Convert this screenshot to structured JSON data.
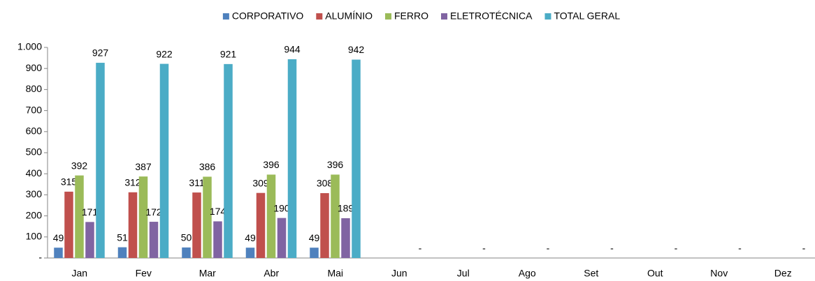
{
  "chart_data": {
    "type": "bar",
    "categories": [
      "Jan",
      "Fev",
      "Mar",
      "Abr",
      "Mai",
      "Jun",
      "Jul",
      "Ago",
      "Set",
      "Out",
      "Nov",
      "Dez"
    ],
    "series": [
      {
        "name": "CORPORATIVO",
        "color": "#4f81bd",
        "values": [
          49,
          51,
          50,
          49,
          49,
          null,
          null,
          null,
          null,
          null,
          null,
          null
        ]
      },
      {
        "name": "ALUMÍNIO",
        "color": "#c0504d",
        "values": [
          315,
          312,
          311,
          309,
          308,
          null,
          null,
          null,
          null,
          null,
          null,
          null
        ]
      },
      {
        "name": "FERRO",
        "color": "#9bbb59",
        "values": [
          392,
          387,
          386,
          396,
          396,
          null,
          null,
          null,
          null,
          null,
          null,
          null
        ]
      },
      {
        "name": "ELETROTÉCNICA",
        "color": "#8064a2",
        "values": [
          171,
          172,
          174,
          190,
          189,
          null,
          null,
          null,
          null,
          null,
          null,
          null
        ]
      },
      {
        "name": "TOTAL GERAL",
        "color": "#4bacc6",
        "values": [
          927,
          922,
          921,
          944,
          942,
          0,
          0,
          0,
          0,
          0,
          0,
          0
        ],
        "value_labels": [
          "927",
          "922",
          "921",
          "944",
          "942",
          "-",
          "-",
          "-",
          "-",
          "-",
          "-",
          "-"
        ]
      }
    ],
    "ylim": [
      0,
      1000
    ],
    "yticks": [
      {
        "value": 0,
        "label": "-"
      },
      100,
      200,
      300,
      400,
      500,
      600,
      700,
      800,
      900,
      {
        "value": 1000,
        "label": "1.000"
      }
    ],
    "legend": "top"
  }
}
